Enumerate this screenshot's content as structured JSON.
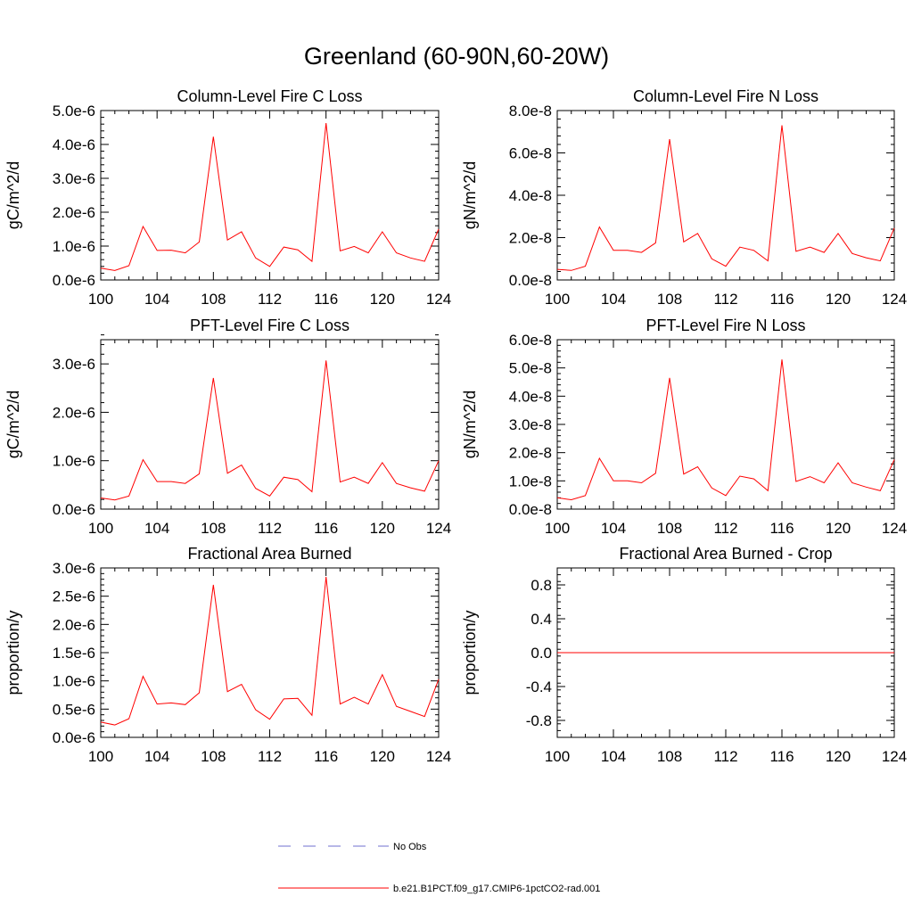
{
  "page": {
    "title": "Greenland (60-90N,60-20W)"
  },
  "colors": {
    "model_line": "#ff0000",
    "obs_line": "#6f6fcf",
    "axis": "#000000"
  },
  "legend": {
    "items": [
      {
        "label": "No Obs",
        "style": "dashed",
        "color": "#6f6fcf"
      },
      {
        "label": "b.e21.B1PCT.f09_g17.CMIP6-1pctCO2-rad.001",
        "style": "solid",
        "color": "#ff0000"
      }
    ]
  },
  "chart_data": [
    {
      "type": "line",
      "title": "Column-Level Fire C Loss",
      "xlabel": "",
      "ylabel": "gC/m^2/d",
      "xlim": [
        100,
        124
      ],
      "ylim": [
        0,
        5e-06
      ],
      "xticks": [
        100,
        104,
        108,
        112,
        116,
        120,
        124
      ],
      "yticks": [
        0,
        1e-06,
        2e-06,
        3e-06,
        4e-06,
        5e-06
      ],
      "ytick_labels": [
        "0.0e-6",
        "1.0e-6",
        "2.0e-6",
        "3.0e-6",
        "4.0e-6",
        "5.0e-6"
      ],
      "grid": false,
      "x": [
        100,
        101,
        102,
        103,
        104,
        105,
        106,
        107,
        108,
        109,
        110,
        111,
        112,
        113,
        114,
        115,
        116,
        117,
        118,
        119,
        120,
        121,
        122,
        123,
        124
      ],
      "series": [
        {
          "values": [
            3.5e-07,
            2.8e-07,
            4.2e-07,
            1.58e-06,
            8.7e-07,
            8.8e-07,
            8e-07,
            1.12e-06,
            4.23e-06,
            1.18e-06,
            1.42e-06,
            6.5e-07,
            4e-07,
            9.7e-07,
            8.9e-07,
            5.5e-07,
            4.63e-06,
            8.6e-07,
            9.9e-07,
            8e-07,
            1.42e-06,
            8e-07,
            6.5e-07,
            5.5e-07,
            1.5e-06
          ]
        }
      ]
    },
    {
      "type": "line",
      "title": "Column-Level Fire N Loss",
      "xlabel": "",
      "ylabel": "gN/m^2/d",
      "xlim": [
        100,
        124
      ],
      "ylim": [
        0,
        8e-08
      ],
      "xticks": [
        100,
        104,
        108,
        112,
        116,
        120,
        124
      ],
      "yticks": [
        0,
        2e-08,
        4e-08,
        6e-08,
        8e-08
      ],
      "ytick_labels": [
        "0.0e-8",
        "2.0e-8",
        "4.0e-8",
        "6.0e-8",
        "8.0e-8"
      ],
      "grid": false,
      "x": [
        100,
        101,
        102,
        103,
        104,
        105,
        106,
        107,
        108,
        109,
        110,
        111,
        112,
        113,
        114,
        115,
        116,
        117,
        118,
        119,
        120,
        121,
        122,
        123,
        124
      ],
      "series": [
        {
          "values": [
            5e-09,
            4.5e-09,
            6.5e-09,
            2.5e-08,
            1.4e-08,
            1.4e-08,
            1.3e-08,
            1.75e-08,
            6.65e-08,
            1.8e-08,
            2.2e-08,
            1e-08,
            6.5e-09,
            1.55e-08,
            1.4e-08,
            9e-09,
            7.3e-08,
            1.35e-08,
            1.55e-08,
            1.3e-08,
            2.2e-08,
            1.25e-08,
            1.05e-08,
            9e-09,
            2.45e-08
          ]
        }
      ]
    },
    {
      "type": "line",
      "title": "PFT-Level Fire C Loss",
      "xlabel": "",
      "ylabel": "gC/m^2/d",
      "xlim": [
        100,
        124
      ],
      "ylim": [
        0,
        3.5e-06
      ],
      "xticks": [
        100,
        104,
        108,
        112,
        116,
        120,
        124
      ],
      "yticks": [
        0,
        1e-06,
        2e-06,
        3e-06
      ],
      "ytick_labels": [
        "0.0e-6",
        "1.0e-6",
        "2.0e-6",
        "3.0e-6"
      ],
      "grid": false,
      "x": [
        100,
        101,
        102,
        103,
        104,
        105,
        106,
        107,
        108,
        109,
        110,
        111,
        112,
        113,
        114,
        115,
        116,
        117,
        118,
        119,
        120,
        121,
        122,
        123,
        124
      ],
      "series": [
        {
          "values": [
            2.3e-07,
            1.9e-07,
            2.7e-07,
            1.02e-06,
            5.7e-07,
            5.7e-07,
            5.3e-07,
            7.3e-07,
            2.71e-06,
            7.4e-07,
            9.1e-07,
            4.3e-07,
            2.7e-07,
            6.6e-07,
            6.1e-07,
            3.6e-07,
            3.07e-06,
            5.6e-07,
            6.6e-07,
            5.3e-07,
            9.6e-07,
            5.3e-07,
            4.4e-07,
            3.7e-07,
            1e-06
          ]
        }
      ]
    },
    {
      "type": "line",
      "title": "PFT-Level Fire N Loss",
      "xlabel": "",
      "ylabel": "gN/m^2/d",
      "xlim": [
        100,
        124
      ],
      "ylim": [
        0,
        6e-08
      ],
      "xticks": [
        100,
        104,
        108,
        112,
        116,
        120,
        124
      ],
      "yticks": [
        0,
        1e-08,
        2e-08,
        3e-08,
        4e-08,
        5e-08,
        6e-08
      ],
      "ytick_labels": [
        "0.0e-8",
        "1.0e-8",
        "2.0e-8",
        "3.0e-8",
        "4.0e-8",
        "5.0e-8",
        "6.0e-8"
      ],
      "grid": false,
      "x": [
        100,
        101,
        102,
        103,
        104,
        105,
        106,
        107,
        108,
        109,
        110,
        111,
        112,
        113,
        114,
        115,
        116,
        117,
        118,
        119,
        120,
        121,
        122,
        123,
        124
      ],
      "series": [
        {
          "values": [
            4e-09,
            3.3e-09,
            4.8e-09,
            1.8e-08,
            1e-08,
            1e-08,
            9.3e-09,
            1.27e-08,
            4.65e-08,
            1.24e-08,
            1.5e-08,
            7.5e-09,
            4.8e-09,
            1.17e-08,
            1.07e-08,
            6.5e-09,
            5.3e-08,
            9.8e-09,
            1.15e-08,
            9.3e-09,
            1.64e-08,
            9.3e-09,
            7.8e-09,
            6.5e-09,
            1.75e-08
          ]
        }
      ]
    },
    {
      "type": "line",
      "title": "Fractional Area Burned",
      "xlabel": "",
      "ylabel": "proportion/y",
      "xlim": [
        100,
        124
      ],
      "ylim": [
        0,
        3e-06
      ],
      "xticks": [
        100,
        104,
        108,
        112,
        116,
        120,
        124
      ],
      "yticks": [
        0,
        5e-07,
        1e-06,
        1.5e-06,
        2e-06,
        2.5e-06,
        3e-06
      ],
      "ytick_labels": [
        "0.0e-6",
        "0.5e-6",
        "1.0e-6",
        "1.5e-6",
        "2.0e-6",
        "2.5e-6",
        "3.0e-6"
      ],
      "grid": false,
      "x": [
        100,
        101,
        102,
        103,
        104,
        105,
        106,
        107,
        108,
        109,
        110,
        111,
        112,
        113,
        114,
        115,
        116,
        117,
        118,
        119,
        120,
        121,
        122,
        123,
        124
      ],
      "series": [
        {
          "values": [
            2.7e-07,
            2.2e-07,
            3.3e-07,
            1.08e-06,
            5.9e-07,
            6.1e-07,
            5.8e-07,
            7.9e-07,
            2.7e-06,
            8.1e-07,
            9.4e-07,
            4.9e-07,
            3.2e-07,
            6.8e-07,
            6.9e-07,
            3.9e-07,
            2.84e-06,
            5.9e-07,
            7.1e-07,
            5.9e-07,
            1.11e-06,
            5.5e-07,
            4.6e-07,
            3.7e-07,
            1.03e-06
          ]
        }
      ]
    },
    {
      "type": "line",
      "title": "Fractional Area Burned - Crop",
      "xlabel": "",
      "ylabel": "proportion/y",
      "xlim": [
        100,
        124
      ],
      "ylim": [
        -1.0,
        1.0
      ],
      "xticks": [
        100,
        104,
        108,
        112,
        116,
        120,
        124
      ],
      "yticks": [
        -0.8,
        -0.4,
        0.0,
        0.4,
        0.8
      ],
      "ytick_labels": [
        "-0.8",
        "-0.4",
        "0.0",
        "0.4",
        "0.8"
      ],
      "grid": false,
      "x": [
        100,
        101,
        102,
        103,
        104,
        105,
        106,
        107,
        108,
        109,
        110,
        111,
        112,
        113,
        114,
        115,
        116,
        117,
        118,
        119,
        120,
        121,
        122,
        123,
        124
      ],
      "series": [
        {
          "values": [
            0,
            0,
            0,
            0,
            0,
            0,
            0,
            0,
            0,
            0,
            0,
            0,
            0,
            0,
            0,
            0,
            0,
            0,
            0,
            0,
            0,
            0,
            0,
            0,
            0
          ]
        }
      ]
    }
  ]
}
